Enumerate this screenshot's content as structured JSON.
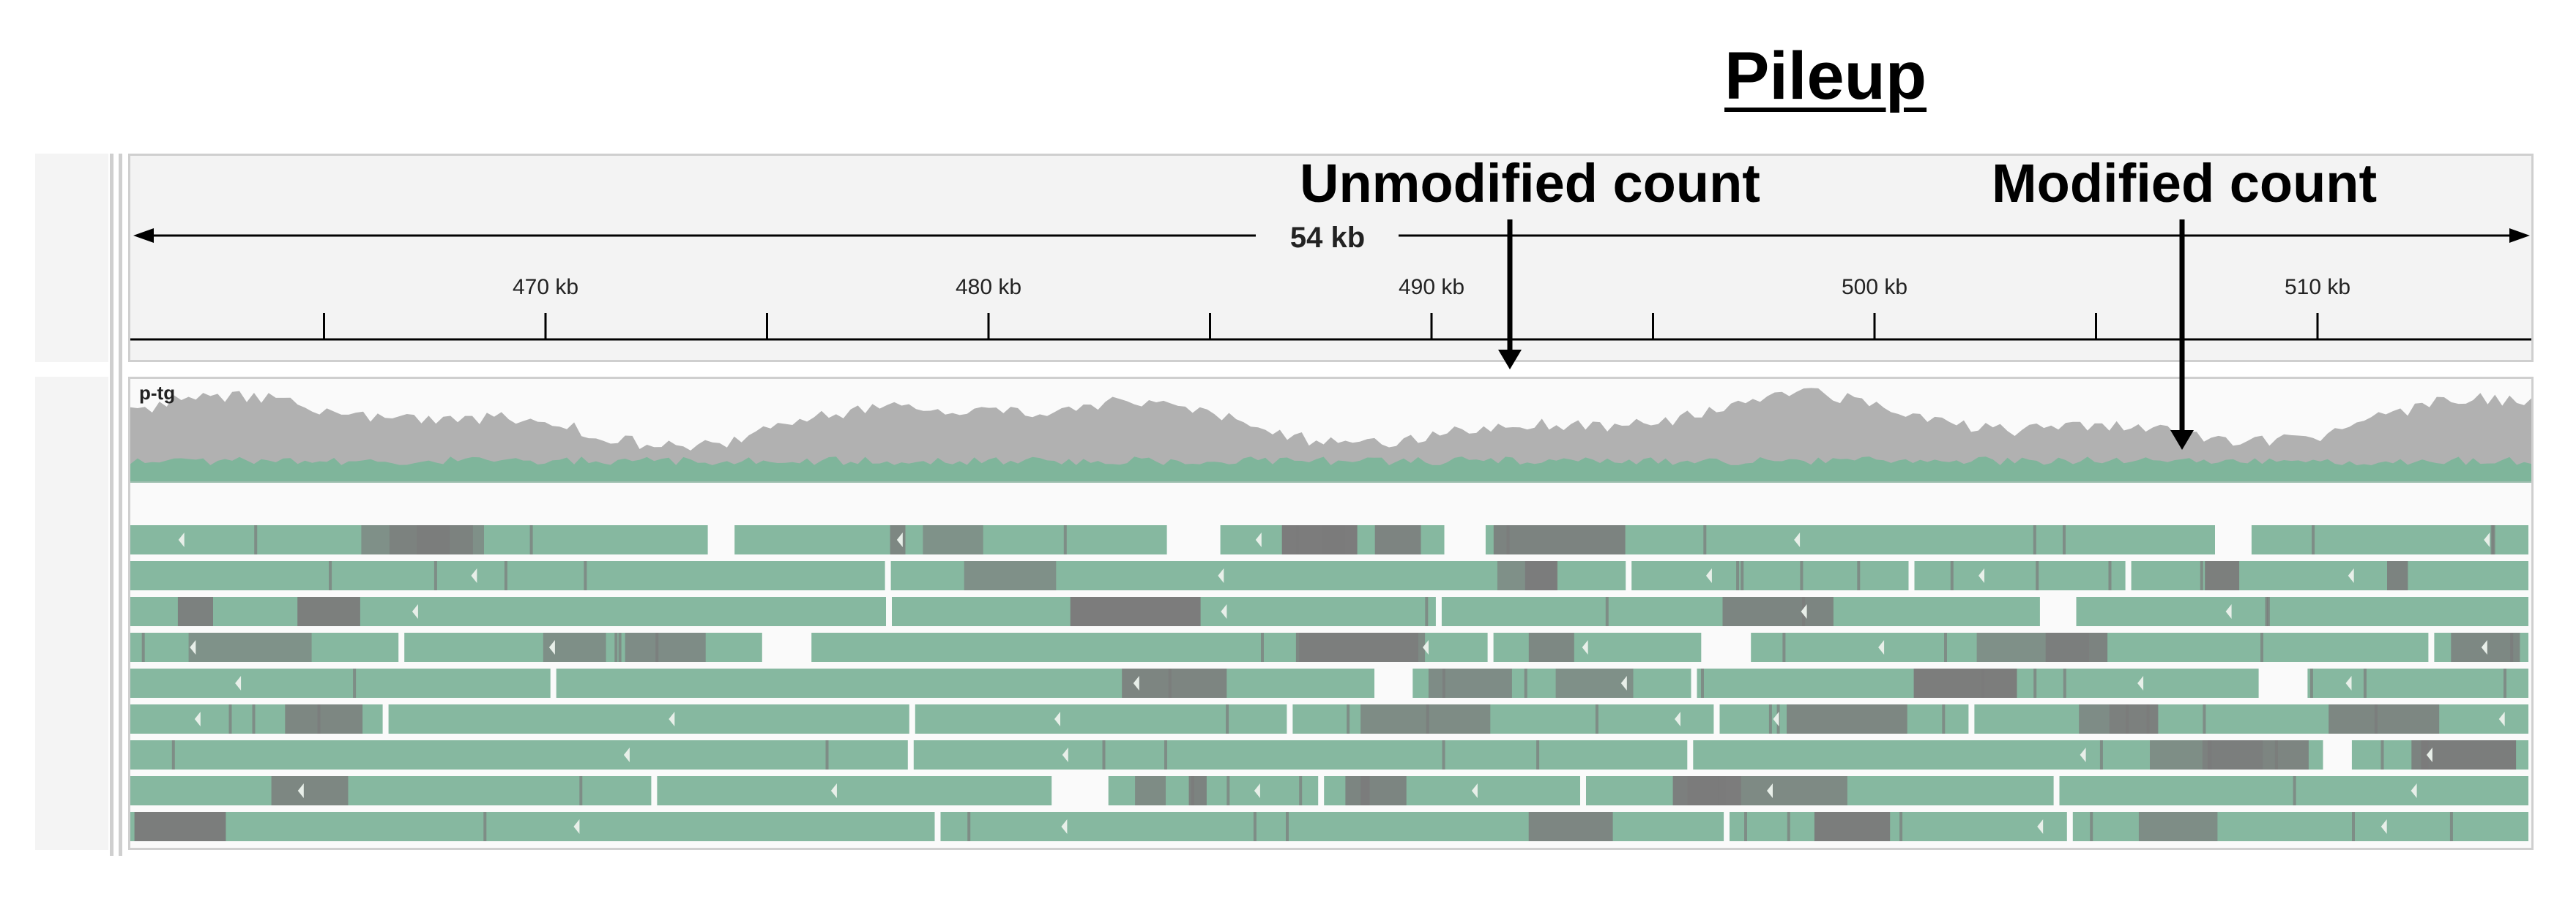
{
  "title": "Pileup",
  "ruler": {
    "span_label": "54 kb",
    "major_ticks": [
      {
        "label": "470 kb",
        "kb": 470
      },
      {
        "label": "480 kb",
        "kb": 480
      },
      {
        "label": "490 kb",
        "kb": 490
      },
      {
        "label": "500 kb",
        "kb": 500
      },
      {
        "label": "510 kb",
        "kb": 510
      }
    ],
    "minor_ticks_kb": [
      465,
      475,
      485,
      495,
      505
    ]
  },
  "track": {
    "name": "p-tg"
  },
  "annotations": {
    "unmodified": "Unmodified count",
    "modified": "Modified count"
  },
  "colors": {
    "coverage_total": "#b1b1b1",
    "coverage_modified": "#7fb59b",
    "read_unmodified": "#86b8a0",
    "read_modified": "#7b7b7b",
    "ruler_line": "#000000"
  }
}
